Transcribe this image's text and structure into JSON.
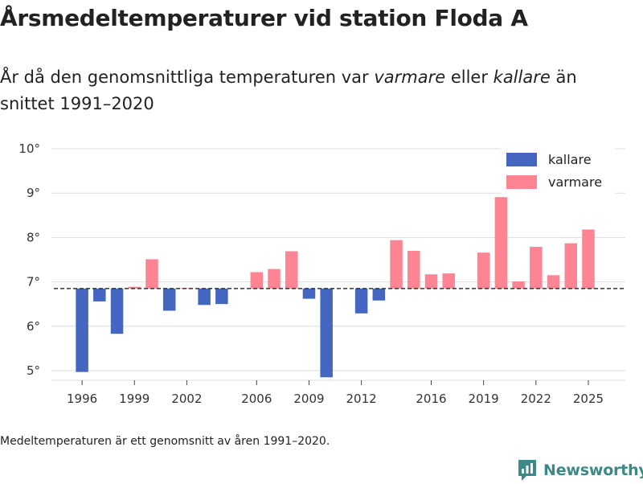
{
  "title": "Årsmedeltemperaturer vid station Floda A",
  "subtitle": {
    "part1": "År då den genomsnittliga temperaturen var ",
    "warmer_word": "varmare",
    "part2": " eller ",
    "colder_word": "kallare",
    "part3": " än snittet 1991–2020"
  },
  "footnote": "Medeltemperaturen är ett genomsnitt av åren 1991–2020.",
  "logo_text": "Newsworthy",
  "colors": {
    "colder": "#4566c0",
    "warmer": "#fd8593",
    "grid": "#dddddd",
    "baseline": "#333333",
    "logo": "#3b8a87"
  },
  "chart_data": {
    "type": "bar",
    "baseline": 6.85,
    "ylim": [
      4.8,
      10.3
    ],
    "y_ticks": [
      5,
      6,
      7,
      8,
      9,
      10
    ],
    "y_tick_suffix": "°",
    "xlim": [
      1994.2,
      2026.8
    ],
    "x_ticks": [
      1996,
      1999,
      2002,
      2006,
      2009,
      2012,
      2016,
      2019,
      2022,
      2025
    ],
    "legend": [
      {
        "key": "colder",
        "label": "kallare"
      },
      {
        "key": "warmer",
        "label": "varmare"
      }
    ],
    "legend_position": "top-right",
    "series": [
      {
        "year": 1996,
        "value": 4.97
      },
      {
        "year": 1997,
        "value": 6.56
      },
      {
        "year": 1998,
        "value": 5.83
      },
      {
        "year": 1999,
        "value": 6.89
      },
      {
        "year": 2000,
        "value": 7.51
      },
      {
        "year": 2001,
        "value": 6.35
      },
      {
        "year": 2002,
        "value": 6.86
      },
      {
        "year": 2003,
        "value": 6.48
      },
      {
        "year": 2004,
        "value": 6.5
      },
      {
        "year": 2006,
        "value": 7.22
      },
      {
        "year": 2007,
        "value": 7.29
      },
      {
        "year": 2008,
        "value": 7.69
      },
      {
        "year": 2009,
        "value": 6.62
      },
      {
        "year": 2010,
        "value": 4.81
      },
      {
        "year": 2012,
        "value": 6.29
      },
      {
        "year": 2013,
        "value": 6.58
      },
      {
        "year": 2014,
        "value": 7.94
      },
      {
        "year": 2015,
        "value": 7.7
      },
      {
        "year": 2016,
        "value": 7.17
      },
      {
        "year": 2017,
        "value": 7.19
      },
      {
        "year": 2019,
        "value": 7.66
      },
      {
        "year": 2020,
        "value": 8.91
      },
      {
        "year": 2021,
        "value": 7.01
      },
      {
        "year": 2022,
        "value": 7.79
      },
      {
        "year": 2023,
        "value": 7.15
      },
      {
        "year": 2024,
        "value": 7.87
      },
      {
        "year": 2025,
        "value": 8.18
      }
    ]
  }
}
